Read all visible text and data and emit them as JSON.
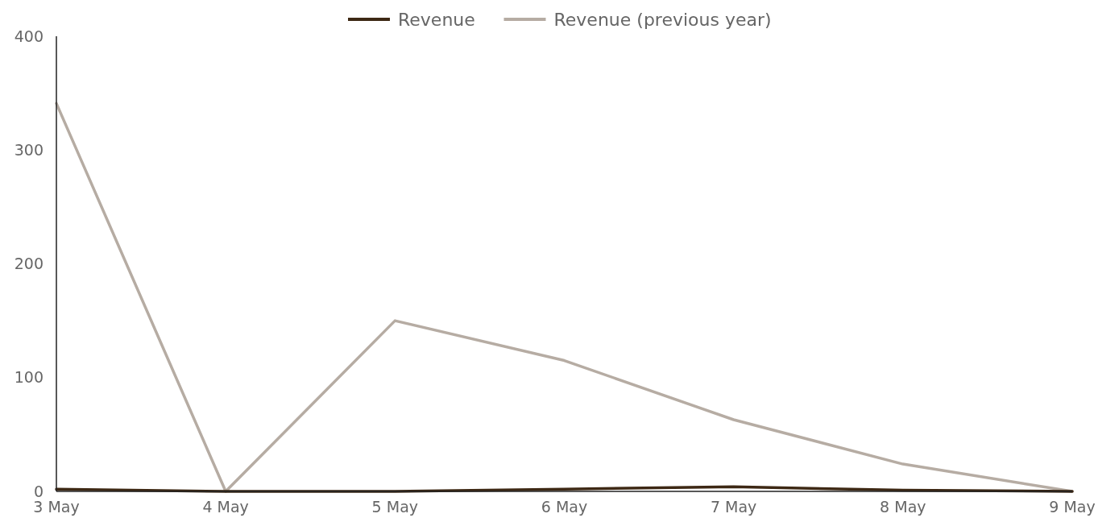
{
  "chart_data": {
    "type": "line",
    "categories": [
      "3 May",
      "4 May",
      "5 May",
      "6 May",
      "7 May",
      "8 May",
      "9 May"
    ],
    "series": [
      {
        "name": "Revenue",
        "color": "#3d2814",
        "values": [
          2,
          0,
          0,
          2,
          4,
          1,
          0
        ]
      },
      {
        "name": "Revenue (previous year)",
        "color": "#b6aca3",
        "values": [
          341,
          0,
          150,
          115,
          63,
          24,
          0
        ]
      }
    ],
    "ylim": [
      0,
      400
    ],
    "yticks": [
      0,
      100,
      200,
      300,
      400
    ],
    "grid": false,
    "legend": "top",
    "marker": "none",
    "line_style": "solid"
  }
}
